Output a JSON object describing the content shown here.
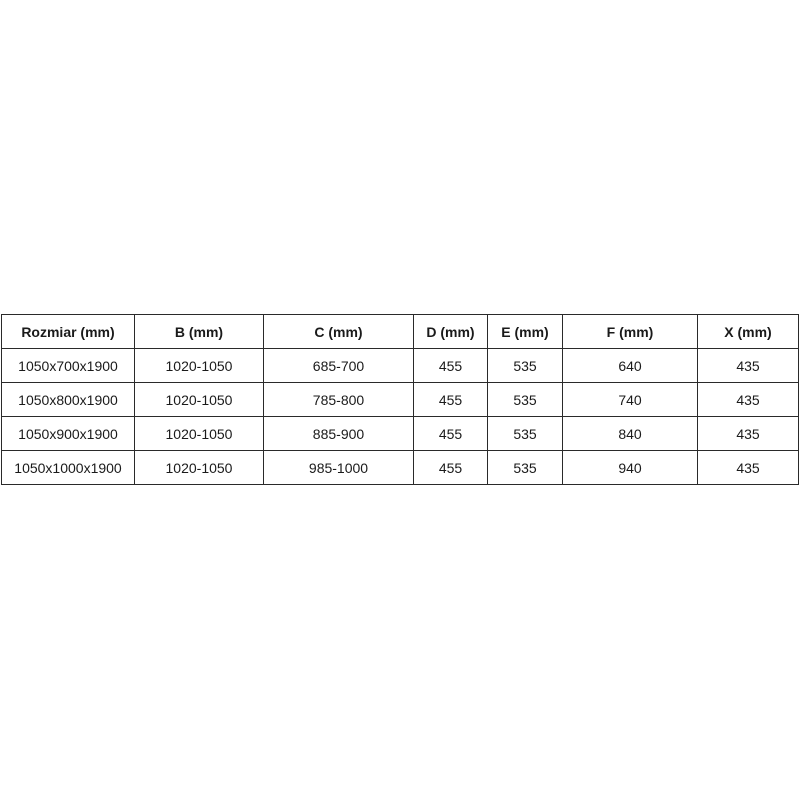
{
  "table": {
    "headers": [
      "Rozmiar (mm)",
      "B (mm)",
      "C (mm)",
      "D (mm)",
      "E (mm)",
      "F (mm)",
      "X (mm)"
    ],
    "rows": [
      [
        "1050x700x1900",
        "1020-1050",
        "685-700",
        "455",
        "535",
        "640",
        "435"
      ],
      [
        "1050x800x1900",
        "1020-1050",
        "785-800",
        "455",
        "535",
        "740",
        "435"
      ],
      [
        "1050x900x1900",
        "1020-1050",
        "885-900",
        "455",
        "535",
        "840",
        "435"
      ],
      [
        "1050x1000x1900",
        "1020-1050",
        "985-1000",
        "455",
        "535",
        "940",
        "435"
      ]
    ]
  }
}
